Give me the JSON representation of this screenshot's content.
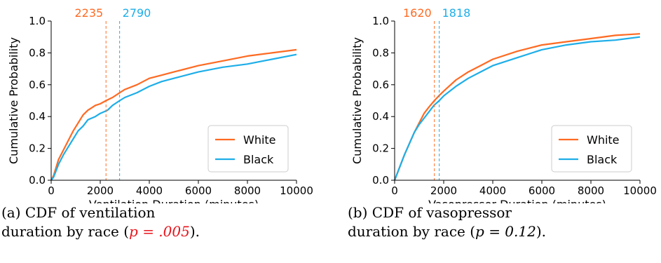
{
  "colors": {
    "white": "#ff6a22",
    "black": "#1eaee8",
    "p_significant": "#e8141c"
  },
  "chart_data": [
    {
      "type": "line",
      "xlabel": "Ventilation Duration (minutes)",
      "ylabel": "Cumulative Probability",
      "xlim": [
        0,
        10000
      ],
      "ylim": [
        0,
        1.0
      ],
      "xticks": [
        "0",
        "2000",
        "4000",
        "6000",
        "8000",
        "10000"
      ],
      "yticks": [
        "0.0",
        "0.2",
        "0.4",
        "0.6",
        "0.8",
        "1.0"
      ],
      "legend_position": "lower-right",
      "series": [
        {
          "name": "White",
          "color": "#ff6a22",
          "x": [
            0,
            100,
            200,
            300,
            400,
            500,
            700,
            900,
            1100,
            1300,
            1500,
            1800,
            2000,
            2235,
            2500,
            2800,
            3000,
            3500,
            4000,
            4500,
            5000,
            6000,
            7000,
            8000,
            9000,
            10000
          ],
          "y": [
            0,
            0.03,
            0.08,
            0.13,
            0.16,
            0.19,
            0.25,
            0.31,
            0.36,
            0.41,
            0.44,
            0.47,
            0.48,
            0.5,
            0.52,
            0.55,
            0.57,
            0.6,
            0.64,
            0.66,
            0.68,
            0.72,
            0.75,
            0.78,
            0.8,
            0.82
          ]
        },
        {
          "name": "Black",
          "color": "#1eaee8",
          "x": [
            0,
            100,
            200,
            300,
            400,
            500,
            700,
            900,
            1100,
            1300,
            1500,
            1800,
            2000,
            2300,
            2500,
            2790,
            3000,
            3500,
            4000,
            4500,
            5000,
            6000,
            7000,
            8000,
            9000,
            10000
          ],
          "y": [
            0,
            0.02,
            0.06,
            0.1,
            0.13,
            0.16,
            0.21,
            0.26,
            0.31,
            0.34,
            0.38,
            0.4,
            0.42,
            0.44,
            0.47,
            0.5,
            0.52,
            0.55,
            0.59,
            0.62,
            0.64,
            0.68,
            0.71,
            0.73,
            0.76,
            0.79
          ]
        }
      ],
      "medians": [
        {
          "label": "2235",
          "x": 2235,
          "color": "#ff6a22"
        },
        {
          "label": "2790",
          "x": 2790,
          "color": "#1eaee8"
        }
      ]
    },
    {
      "type": "line",
      "xlabel": "Vasopressor Duration (minutes)",
      "ylabel": "Cumulative Probability",
      "xlim": [
        0,
        10000
      ],
      "ylim": [
        0,
        1.0
      ],
      "xticks": [
        "0",
        "2000",
        "4000",
        "6000",
        "8000",
        "10000"
      ],
      "yticks": [
        "0.0",
        "0.2",
        "0.4",
        "0.6",
        "0.8",
        "1.0"
      ],
      "legend_position": "lower-right",
      "series": [
        {
          "name": "White",
          "color": "#ff6a22",
          "x": [
            0,
            100,
            200,
            400,
            600,
            800,
            1000,
            1200,
            1400,
            1620,
            1800,
            2000,
            2500,
            3000,
            3500,
            4000,
            5000,
            6000,
            7000,
            8000,
            9000,
            10000
          ],
          "y": [
            0,
            0.04,
            0.08,
            0.16,
            0.23,
            0.3,
            0.36,
            0.42,
            0.46,
            0.5,
            0.53,
            0.56,
            0.63,
            0.68,
            0.72,
            0.76,
            0.81,
            0.85,
            0.87,
            0.89,
            0.91,
            0.92
          ]
        },
        {
          "name": "Black",
          "color": "#1eaee8",
          "x": [
            0,
            100,
            200,
            400,
            600,
            800,
            1000,
            1200,
            1400,
            1600,
            1818,
            2000,
            2500,
            3000,
            3500,
            4000,
            5000,
            6000,
            7000,
            8000,
            9000,
            10000
          ],
          "y": [
            0,
            0.04,
            0.08,
            0.16,
            0.23,
            0.3,
            0.35,
            0.39,
            0.43,
            0.47,
            0.5,
            0.53,
            0.59,
            0.64,
            0.68,
            0.72,
            0.77,
            0.82,
            0.85,
            0.87,
            0.88,
            0.9
          ]
        }
      ],
      "medians": [
        {
          "label": "1620",
          "x": 1620,
          "color": "#ff6a22"
        },
        {
          "label": "1818",
          "x": 1818,
          "color": "#1eaee8"
        }
      ]
    }
  ],
  "captions": [
    {
      "line1": "(a) CDF of ventilation",
      "line2_pre": "duration by race (",
      "p_value": "p = .005",
      "line2_post": ")."
    },
    {
      "line1": "(b) CDF of vasopressor",
      "line2_pre": "duration by race (",
      "p_value": "p = 0.12",
      "line2_post": ")."
    }
  ]
}
